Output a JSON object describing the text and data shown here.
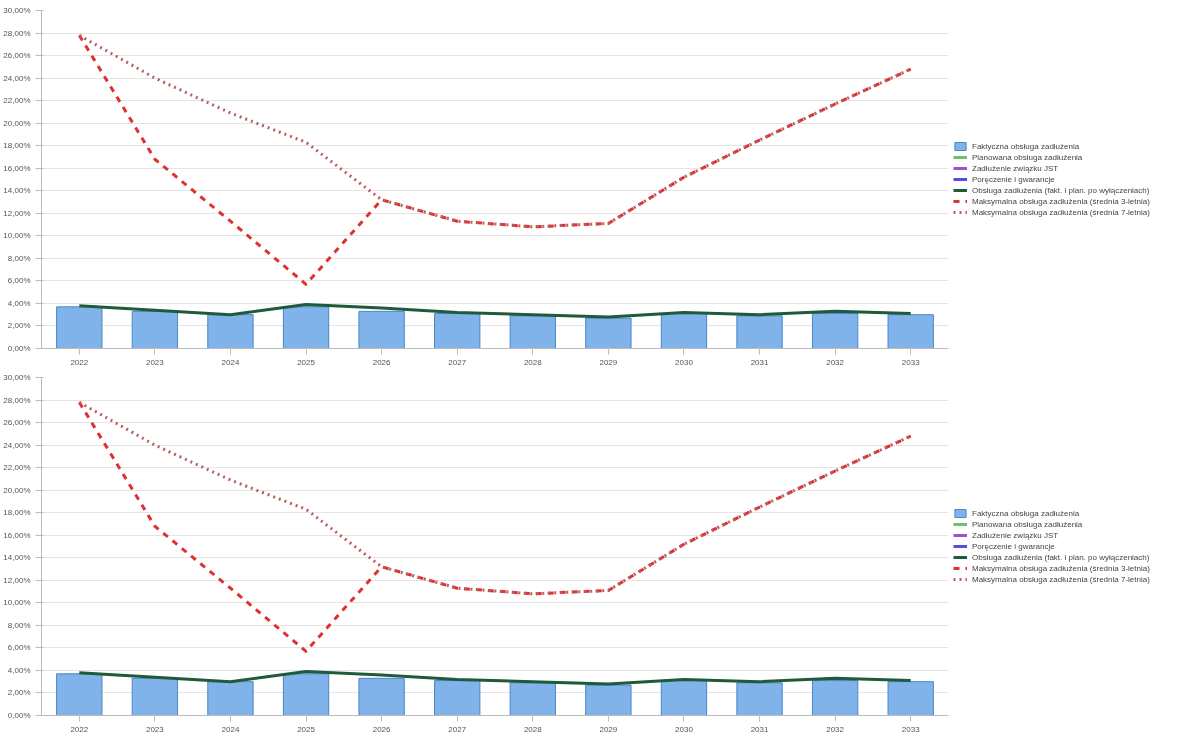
{
  "chart_data": [
    {
      "type": "bar",
      "categories": [
        "2022",
        "2023",
        "2024",
        "2025",
        "2026",
        "2027",
        "2028",
        "2029",
        "2030",
        "2031",
        "2032",
        "2033"
      ],
      "series": [
        {
          "name": "Faktyczna obsługa zadłużenia",
          "color": "#7fb3ea",
          "values": [
            3.7,
            3.3,
            3.0,
            3.7,
            3.3,
            3.1,
            2.9,
            2.7,
            3.1,
            2.9,
            3.1,
            3.0
          ]
        },
        {
          "name": "Planowana obsługa zadłużenia",
          "type": "line",
          "color": "#6cbf6c",
          "values": [
            null,
            null,
            null,
            null,
            null,
            null,
            null,
            null,
            null,
            null,
            null,
            null
          ]
        },
        {
          "name": "Zadłużenie związku JST",
          "type": "line",
          "color": "#a050c0",
          "values": [
            null,
            null,
            null,
            null,
            null,
            null,
            null,
            null,
            null,
            null,
            null,
            null
          ]
        },
        {
          "name": "Poręczenie i gwarancje",
          "type": "line",
          "color": "#5050e0",
          "values": [
            null,
            null,
            null,
            null,
            null,
            null,
            null,
            null,
            null,
            null,
            null,
            null
          ]
        },
        {
          "name": "Obsługa zadłużenia (fakt. i plan. po wyłączeniach)",
          "type": "line",
          "line_style": "solid",
          "color": "#1f5a3a",
          "values": [
            3.8,
            3.4,
            3.0,
            3.9,
            3.6,
            3.2,
            3.0,
            2.8,
            3.2,
            3.0,
            3.3,
            3.1
          ]
        },
        {
          "name": "Maksymalna obsługa zadłużenia (średnia 3-letnia)",
          "type": "line",
          "line_style": "dashed",
          "color": "#e03030",
          "values": [
            27.8,
            16.8,
            11.3,
            5.7,
            13.2,
            11.3,
            10.8,
            11.1,
            15.2,
            18.5,
            21.7,
            24.8
          ]
        },
        {
          "name": "Maksymalna obsługa zadłużenia (średnia 7-letnia)",
          "type": "line",
          "line_style": "dotted",
          "color": "#b86060",
          "values": [
            27.8,
            24.0,
            20.9,
            18.3,
            13.2,
            11.3,
            10.8,
            11.1,
            15.2,
            18.5,
            21.7,
            24.8
          ]
        }
      ],
      "ylim": [
        0,
        30
      ],
      "yticks": [
        {
          "value": 0,
          "label": "0,00%"
        },
        {
          "value": 2,
          "label": "2,00%"
        },
        {
          "value": 4,
          "label": "4,00%"
        },
        {
          "value": 6,
          "label": "6,00%"
        },
        {
          "value": 8,
          "label": "8,00%"
        },
        {
          "value": 10,
          "label": "10,00%"
        },
        {
          "value": 12,
          "label": "12,00%"
        },
        {
          "value": 14,
          "label": "14,00%"
        },
        {
          "value": 16,
          "label": "16,00%"
        },
        {
          "value": 18,
          "label": "18,00%"
        },
        {
          "value": 20,
          "label": "20,00%"
        },
        {
          "value": 22,
          "label": "22,00%"
        },
        {
          "value": 24,
          "label": "24,00%"
        },
        {
          "value": 26,
          "label": "26,00%"
        },
        {
          "value": 28,
          "label": "28,00%"
        },
        {
          "value": 30,
          "label": "30,00%"
        }
      ],
      "grid": "y",
      "legend": "right",
      "marker": "none"
    },
    {
      "type": "bar",
      "categories": [
        "2022",
        "2023",
        "2024",
        "2025",
        "2026",
        "2027",
        "2028",
        "2029",
        "2030",
        "2031",
        "2032",
        "2033"
      ],
      "series": [
        {
          "name": "Faktyczna obsługa zadłużenia",
          "color": "#7fb3ea",
          "values": [
            3.7,
            3.3,
            3.0,
            3.7,
            3.3,
            3.1,
            2.9,
            2.7,
            3.1,
            2.9,
            3.1,
            3.0
          ]
        },
        {
          "name": "Planowana obsługa zadłużenia",
          "type": "line",
          "color": "#6cbf6c",
          "values": [
            null,
            null,
            null,
            null,
            null,
            null,
            null,
            null,
            null,
            null,
            null,
            null
          ]
        },
        {
          "name": "Zadłużenie związku JST",
          "type": "line",
          "color": "#a050c0",
          "values": [
            null,
            null,
            null,
            null,
            null,
            null,
            null,
            null,
            null,
            null,
            null,
            null
          ]
        },
        {
          "name": "Poręczenie i gwarancje",
          "type": "line",
          "color": "#5050e0",
          "values": [
            null,
            null,
            null,
            null,
            null,
            null,
            null,
            null,
            null,
            null,
            null,
            null
          ]
        },
        {
          "name": "Obsługa zadłużenia (fakt. i plan. po wyłączeniach)",
          "type": "line",
          "line_style": "solid",
          "color": "#1f5a3a",
          "values": [
            3.8,
            3.4,
            3.0,
            3.9,
            3.6,
            3.2,
            3.0,
            2.8,
            3.2,
            3.0,
            3.3,
            3.1
          ]
        },
        {
          "name": "Maksymalna obsługa zadłużenia (średnia 3-letnia)",
          "type": "line",
          "line_style": "dashed",
          "color": "#e03030",
          "values": [
            27.8,
            16.8,
            11.3,
            5.7,
            13.2,
            11.3,
            10.8,
            11.1,
            15.2,
            18.5,
            21.7,
            24.8
          ]
        },
        {
          "name": "Maksymalna obsługa zadłużenia (średnia 7-letnia)",
          "type": "line",
          "line_style": "dotted",
          "color": "#b86060",
          "values": [
            27.8,
            24.0,
            20.9,
            18.3,
            13.2,
            11.3,
            10.8,
            11.1,
            15.2,
            18.5,
            21.7,
            24.8
          ]
        }
      ],
      "ylim": [
        0,
        30
      ],
      "yticks": [
        {
          "value": 0,
          "label": "0,00%"
        },
        {
          "value": 2,
          "label": "2,00%"
        },
        {
          "value": 4,
          "label": "4,00%"
        },
        {
          "value": 6,
          "label": "6,00%"
        },
        {
          "value": 8,
          "label": "8,00%"
        },
        {
          "value": 10,
          "label": "10,00%"
        },
        {
          "value": 12,
          "label": "12,00%"
        },
        {
          "value": 14,
          "label": "14,00%"
        },
        {
          "value": 16,
          "label": "16,00%"
        },
        {
          "value": 18,
          "label": "18,00%"
        },
        {
          "value": 20,
          "label": "20,00%"
        },
        {
          "value": 22,
          "label": "22,00%"
        },
        {
          "value": 24,
          "label": "24,00%"
        },
        {
          "value": 26,
          "label": "26,00%"
        },
        {
          "value": 28,
          "label": "28,00%"
        },
        {
          "value": 30,
          "label": "30,00%"
        }
      ],
      "grid": "y",
      "legend": "right",
      "marker": "none"
    }
  ]
}
